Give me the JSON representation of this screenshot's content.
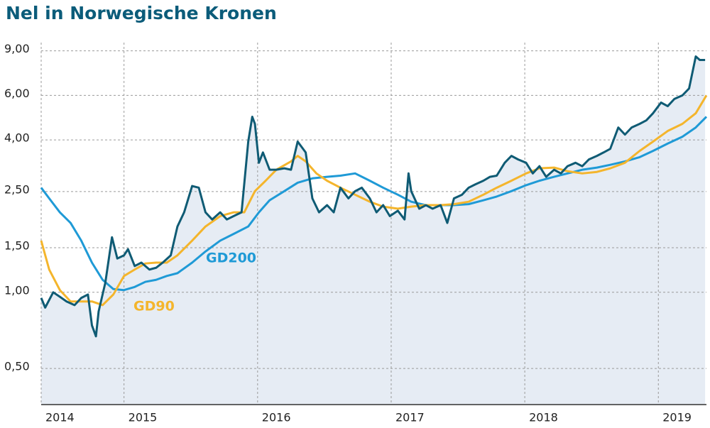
{
  "chart_data": {
    "type": "line",
    "title": "Nel in Norwegische Kronen",
    "log_y": true,
    "grid": true,
    "area_under": 0,
    "area_color": "#e6ecf4",
    "xlim": [
      2014.38,
      2019.36
    ],
    "xticks": [
      {
        "value": 2014.38,
        "label": "2014"
      },
      2015,
      2016,
      2017,
      2018,
      2019
    ],
    "ylim": [
      0.36,
      9.7
    ],
    "yticks": [
      {
        "value": 0.5,
        "label": "0,50"
      },
      {
        "value": 1,
        "label": "1,00"
      },
      {
        "value": 1.5,
        "label": "1,50"
      },
      {
        "value": 2.5,
        "label": "2,50"
      },
      {
        "value": 4,
        "label": "4,00"
      },
      {
        "value": 6,
        "label": "6,00"
      },
      {
        "value": 9,
        "label": "9,00"
      }
    ],
    "series": [
      {
        "color": "#0f5b74",
        "x": [
          2014.38,
          2014.41,
          2014.47,
          2014.52,
          2014.57,
          2014.63,
          2014.68,
          2014.73,
          2014.76,
          2014.79,
          2014.81,
          2014.86,
          2014.91,
          2014.95,
          2015.0,
          2015.03,
          2015.08,
          2015.13,
          2015.19,
          2015.24,
          2015.29,
          2015.35,
          2015.4,
          2015.45,
          2015.51,
          2015.56,
          2015.61,
          2015.66,
          2015.72,
          2015.77,
          2015.82,
          2015.88,
          2015.93,
          2015.96,
          2015.98,
          2016.01,
          2016.04,
          2016.09,
          2016.14,
          2016.2,
          2016.25,
          2016.3,
          2016.36,
          2016.41,
          2016.46,
          2016.52,
          2016.57,
          2016.62,
          2016.68,
          2016.73,
          2016.78,
          2016.84,
          2016.89,
          2016.94,
          2016.99,
          2017.05,
          2017.1,
          2017.13,
          2017.15,
          2017.21,
          2017.26,
          2017.31,
          2017.37,
          2017.42,
          2017.47,
          2017.53,
          2017.58,
          2017.63,
          2017.69,
          2017.74,
          2017.79,
          2017.85,
          2017.9,
          2017.95,
          2018.01,
          2018.06,
          2018.11,
          2018.16,
          2018.22,
          2018.27,
          2018.32,
          2018.38,
          2018.43,
          2018.48,
          2018.54,
          2018.59,
          2018.64,
          2018.7,
          2018.75,
          2018.8,
          2018.86,
          2018.91,
          2018.96,
          2019.02,
          2019.07,
          2019.12,
          2019.18,
          2019.23,
          2019.28,
          2019.31,
          2019.35
        ],
        "values": [
          0.95,
          0.87,
          1.0,
          0.96,
          0.92,
          0.89,
          0.95,
          0.98,
          0.74,
          0.67,
          0.84,
          1.09,
          1.65,
          1.36,
          1.4,
          1.48,
          1.27,
          1.31,
          1.23,
          1.25,
          1.31,
          1.4,
          1.82,
          2.07,
          2.63,
          2.59,
          2.07,
          1.94,
          2.07,
          1.94,
          2.0,
          2.07,
          3.94,
          4.94,
          4.63,
          3.25,
          3.57,
          3.05,
          3.05,
          3.09,
          3.05,
          3.94,
          3.57,
          2.35,
          2.07,
          2.21,
          2.07,
          2.59,
          2.35,
          2.51,
          2.59,
          2.35,
          2.07,
          2.21,
          2.0,
          2.1,
          1.94,
          2.95,
          2.51,
          2.14,
          2.21,
          2.14,
          2.21,
          1.88,
          2.35,
          2.43,
          2.59,
          2.67,
          2.76,
          2.86,
          2.89,
          3.25,
          3.46,
          3.35,
          3.25,
          2.95,
          3.15,
          2.86,
          3.05,
          2.95,
          3.15,
          3.25,
          3.15,
          3.35,
          3.46,
          3.57,
          3.69,
          4.48,
          4.2,
          4.48,
          4.63,
          4.78,
          5.1,
          5.62,
          5.44,
          5.81,
          6.0,
          6.39,
          8.55,
          8.28,
          8.28
        ]
      },
      {
        "name": "GD200",
        "color": "#1f9ad6",
        "x": [
          2014.38,
          2014.44,
          2014.52,
          2014.6,
          2014.68,
          2014.76,
          2014.84,
          2014.92,
          2015.0,
          2015.08,
          2015.16,
          2015.24,
          2015.32,
          2015.4,
          2015.51,
          2015.61,
          2015.72,
          2015.82,
          2015.93,
          2016.01,
          2016.09,
          2016.2,
          2016.3,
          2016.41,
          2016.52,
          2016.62,
          2016.73,
          2016.84,
          2016.94,
          2017.05,
          2017.15,
          2017.26,
          2017.37,
          2017.47,
          2017.58,
          2017.69,
          2017.79,
          2017.9,
          2018.01,
          2018.11,
          2018.22,
          2018.32,
          2018.43,
          2018.54,
          2018.64,
          2018.75,
          2018.86,
          2018.96,
          2019.07,
          2019.18,
          2019.28,
          2019.36
        ],
        "values": [
          2.59,
          2.35,
          2.07,
          1.88,
          1.6,
          1.31,
          1.12,
          1.03,
          1.02,
          1.05,
          1.1,
          1.12,
          1.16,
          1.19,
          1.31,
          1.45,
          1.6,
          1.7,
          1.82,
          2.07,
          2.31,
          2.51,
          2.71,
          2.82,
          2.86,
          2.89,
          2.95,
          2.76,
          2.59,
          2.43,
          2.28,
          2.21,
          2.21,
          2.21,
          2.23,
          2.31,
          2.39,
          2.51,
          2.65,
          2.76,
          2.86,
          2.95,
          3.05,
          3.11,
          3.19,
          3.29,
          3.42,
          3.62,
          3.87,
          4.12,
          4.48,
          4.94
        ]
      },
      {
        "name": "GD90",
        "color": "#f4b52c",
        "x": [
          2014.38,
          2014.44,
          2014.52,
          2014.6,
          2014.68,
          2014.76,
          2014.84,
          2014.92,
          2015.0,
          2015.08,
          2015.16,
          2015.24,
          2015.32,
          2015.4,
          2015.51,
          2015.61,
          2015.72,
          2015.82,
          2015.9,
          2015.98,
          2016.06,
          2016.14,
          2016.25,
          2016.3,
          2016.36,
          2016.44,
          2016.52,
          2016.62,
          2016.73,
          2016.84,
          2016.94,
          2017.05,
          2017.15,
          2017.26,
          2017.37,
          2017.47,
          2017.58,
          2017.69,
          2017.79,
          2017.9,
          2018.01,
          2018.11,
          2018.22,
          2018.32,
          2018.43,
          2018.54,
          2018.64,
          2018.75,
          2018.86,
          2018.96,
          2019.07,
          2019.18,
          2019.28,
          2019.36
        ],
        "values": [
          1.6,
          1.23,
          1.02,
          0.92,
          0.92,
          0.92,
          0.89,
          0.98,
          1.16,
          1.23,
          1.3,
          1.31,
          1.31,
          1.4,
          1.6,
          1.82,
          2.0,
          2.07,
          2.07,
          2.51,
          2.76,
          3.05,
          3.29,
          3.46,
          3.29,
          2.95,
          2.76,
          2.59,
          2.43,
          2.28,
          2.18,
          2.14,
          2.18,
          2.21,
          2.21,
          2.23,
          2.28,
          2.43,
          2.59,
          2.76,
          2.95,
          3.09,
          3.11,
          3.01,
          2.95,
          2.99,
          3.09,
          3.25,
          3.62,
          3.94,
          4.34,
          4.63,
          5.1,
          6.0
        ]
      }
    ]
  }
}
